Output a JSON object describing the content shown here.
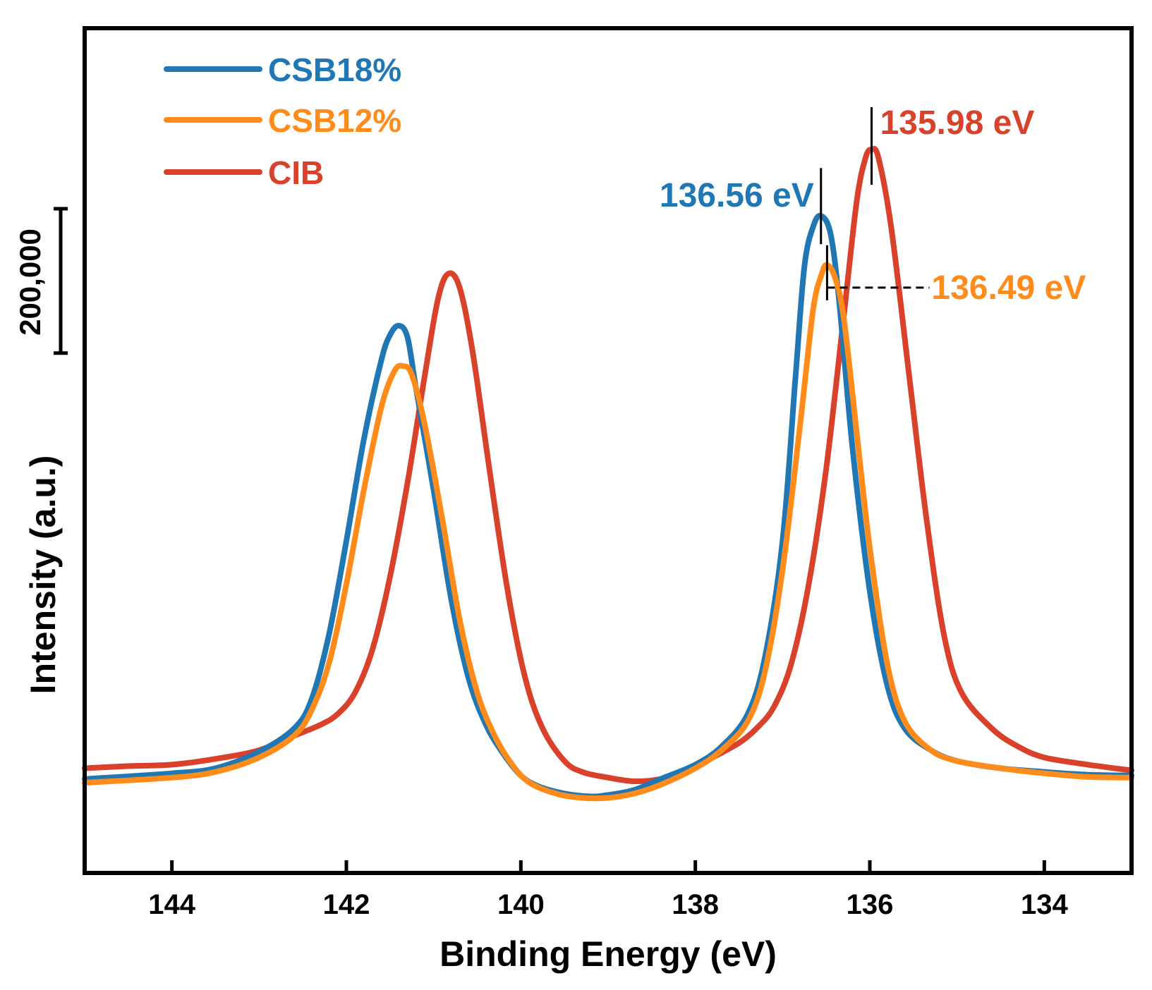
{
  "chart_data": {
    "type": "line",
    "title": "",
    "xlabel": "Binding Energy (eV)",
    "ylabel": "Intensity (a.u.)",
    "xlim": [
      145.0,
      133.0
    ],
    "x_reversed": true,
    "ylim": [
      -130000,
      1040000
    ],
    "x_ticks": [
      "144",
      "142",
      "140",
      "138",
      "136",
      "134"
    ],
    "x_tick_values": [
      144,
      142,
      140,
      138,
      136,
      134
    ],
    "scale_bar": {
      "label": "200,000",
      "value": 200000
    },
    "series": [
      {
        "name": "CSB18%",
        "color": "#1f77b4",
        "points": [
          [
            145.0,
            0
          ],
          [
            144.0,
            8000
          ],
          [
            143.5,
            15000
          ],
          [
            143.0,
            38000
          ],
          [
            142.6,
            70000
          ],
          [
            142.4,
            110000
          ],
          [
            142.2,
            200000
          ],
          [
            142.0,
            330000
          ],
          [
            141.8,
            470000
          ],
          [
            141.6,
            580000
          ],
          [
            141.5,
            615000
          ],
          [
            141.4,
            628000
          ],
          [
            141.3,
            612000
          ],
          [
            141.2,
            540000
          ],
          [
            141.0,
            400000
          ],
          [
            140.8,
            250000
          ],
          [
            140.6,
            140000
          ],
          [
            140.4,
            75000
          ],
          [
            140.2,
            35000
          ],
          [
            140.0,
            5000
          ],
          [
            139.8,
            -10000
          ],
          [
            139.5,
            -20000
          ],
          [
            139.2,
            -24000
          ],
          [
            139.0,
            -22000
          ],
          [
            138.7,
            -15000
          ],
          [
            138.4,
            0
          ],
          [
            138.0,
            20000
          ],
          [
            137.7,
            45000
          ],
          [
            137.4,
            90000
          ],
          [
            137.2,
            170000
          ],
          [
            137.0,
            330000
          ],
          [
            136.85,
            560000
          ],
          [
            136.75,
            710000
          ],
          [
            136.65,
            765000
          ],
          [
            136.56,
            780000
          ],
          [
            136.45,
            755000
          ],
          [
            136.35,
            660000
          ],
          [
            136.2,
            460000
          ],
          [
            136.0,
            260000
          ],
          [
            135.8,
            130000
          ],
          [
            135.6,
            70000
          ],
          [
            135.3,
            40000
          ],
          [
            135.0,
            25000
          ],
          [
            134.5,
            15000
          ],
          [
            134.0,
            10000
          ],
          [
            133.5,
            6000
          ],
          [
            133.0,
            5000
          ]
        ]
      },
      {
        "name": "CSB12%",
        "color": "#ff8c1a",
        "points": [
          [
            145.0,
            -5000
          ],
          [
            144.0,
            2000
          ],
          [
            143.5,
            10000
          ],
          [
            143.0,
            30000
          ],
          [
            142.6,
            60000
          ],
          [
            142.4,
            95000
          ],
          [
            142.2,
            160000
          ],
          [
            142.0,
            270000
          ],
          [
            141.8,
            400000
          ],
          [
            141.6,
            515000
          ],
          [
            141.45,
            565000
          ],
          [
            141.35,
            572000
          ],
          [
            141.25,
            560000
          ],
          [
            141.1,
            490000
          ],
          [
            140.9,
            360000
          ],
          [
            140.7,
            220000
          ],
          [
            140.5,
            120000
          ],
          [
            140.3,
            60000
          ],
          [
            140.1,
            20000
          ],
          [
            139.9,
            -5000
          ],
          [
            139.6,
            -20000
          ],
          [
            139.3,
            -26000
          ],
          [
            139.0,
            -26000
          ],
          [
            138.7,
            -20000
          ],
          [
            138.4,
            -8000
          ],
          [
            138.0,
            15000
          ],
          [
            137.7,
            40000
          ],
          [
            137.4,
            80000
          ],
          [
            137.2,
            150000
          ],
          [
            137.0,
            290000
          ],
          [
            136.8,
            490000
          ],
          [
            136.65,
            650000
          ],
          [
            136.55,
            700000
          ],
          [
            136.49,
            712000
          ],
          [
            136.4,
            695000
          ],
          [
            136.3,
            640000
          ],
          [
            136.15,
            480000
          ],
          [
            136.0,
            320000
          ],
          [
            135.8,
            160000
          ],
          [
            135.6,
            80000
          ],
          [
            135.3,
            40000
          ],
          [
            135.0,
            25000
          ],
          [
            134.5,
            15000
          ],
          [
            134.0,
            8000
          ],
          [
            133.5,
            3000
          ],
          [
            133.0,
            2000
          ]
        ]
      },
      {
        "name": "CIB",
        "color": "#d9412b",
        "points": [
          [
            145.0,
            15000
          ],
          [
            144.5,
            18000
          ],
          [
            144.0,
            20000
          ],
          [
            143.5,
            28000
          ],
          [
            143.0,
            40000
          ],
          [
            142.6,
            60000
          ],
          [
            142.3,
            75000
          ],
          [
            142.1,
            90000
          ],
          [
            141.9,
            120000
          ],
          [
            141.7,
            180000
          ],
          [
            141.5,
            280000
          ],
          [
            141.3,
            410000
          ],
          [
            141.1,
            560000
          ],
          [
            140.95,
            665000
          ],
          [
            140.83,
            700000
          ],
          [
            140.7,
            680000
          ],
          [
            140.55,
            590000
          ],
          [
            140.35,
            420000
          ],
          [
            140.15,
            260000
          ],
          [
            139.95,
            140000
          ],
          [
            139.75,
            70000
          ],
          [
            139.5,
            25000
          ],
          [
            139.3,
            10000
          ],
          [
            139.0,
            2000
          ],
          [
            138.7,
            -3000
          ],
          [
            138.4,
            0
          ],
          [
            138.1,
            10000
          ],
          [
            137.8,
            30000
          ],
          [
            137.5,
            50000
          ],
          [
            137.3,
            70000
          ],
          [
            137.1,
            100000
          ],
          [
            136.9,
            160000
          ],
          [
            136.7,
            270000
          ],
          [
            136.5,
            430000
          ],
          [
            136.3,
            640000
          ],
          [
            136.15,
            800000
          ],
          [
            136.05,
            860000
          ],
          [
            135.98,
            872000
          ],
          [
            135.9,
            860000
          ],
          [
            135.75,
            760000
          ],
          [
            135.55,
            560000
          ],
          [
            135.35,
            360000
          ],
          [
            135.15,
            200000
          ],
          [
            134.95,
            120000
          ],
          [
            134.6,
            70000
          ],
          [
            134.3,
            45000
          ],
          [
            134.0,
            30000
          ],
          [
            133.5,
            20000
          ],
          [
            133.0,
            12000
          ]
        ]
      }
    ],
    "annotations": [
      {
        "text": "135.98 eV",
        "series": "CIB",
        "x": 135.98,
        "y": 872000,
        "color": "#d9412b"
      },
      {
        "text": "136.56 eV",
        "series": "CSB18%",
        "x": 136.56,
        "y": 780000,
        "color": "#1f77b4"
      },
      {
        "text": "136.49 eV",
        "series": "CSB12%",
        "x": 136.49,
        "y": 712000,
        "color": "#ff8c1a"
      }
    ],
    "legend_position": "top-left",
    "grid": false
  }
}
